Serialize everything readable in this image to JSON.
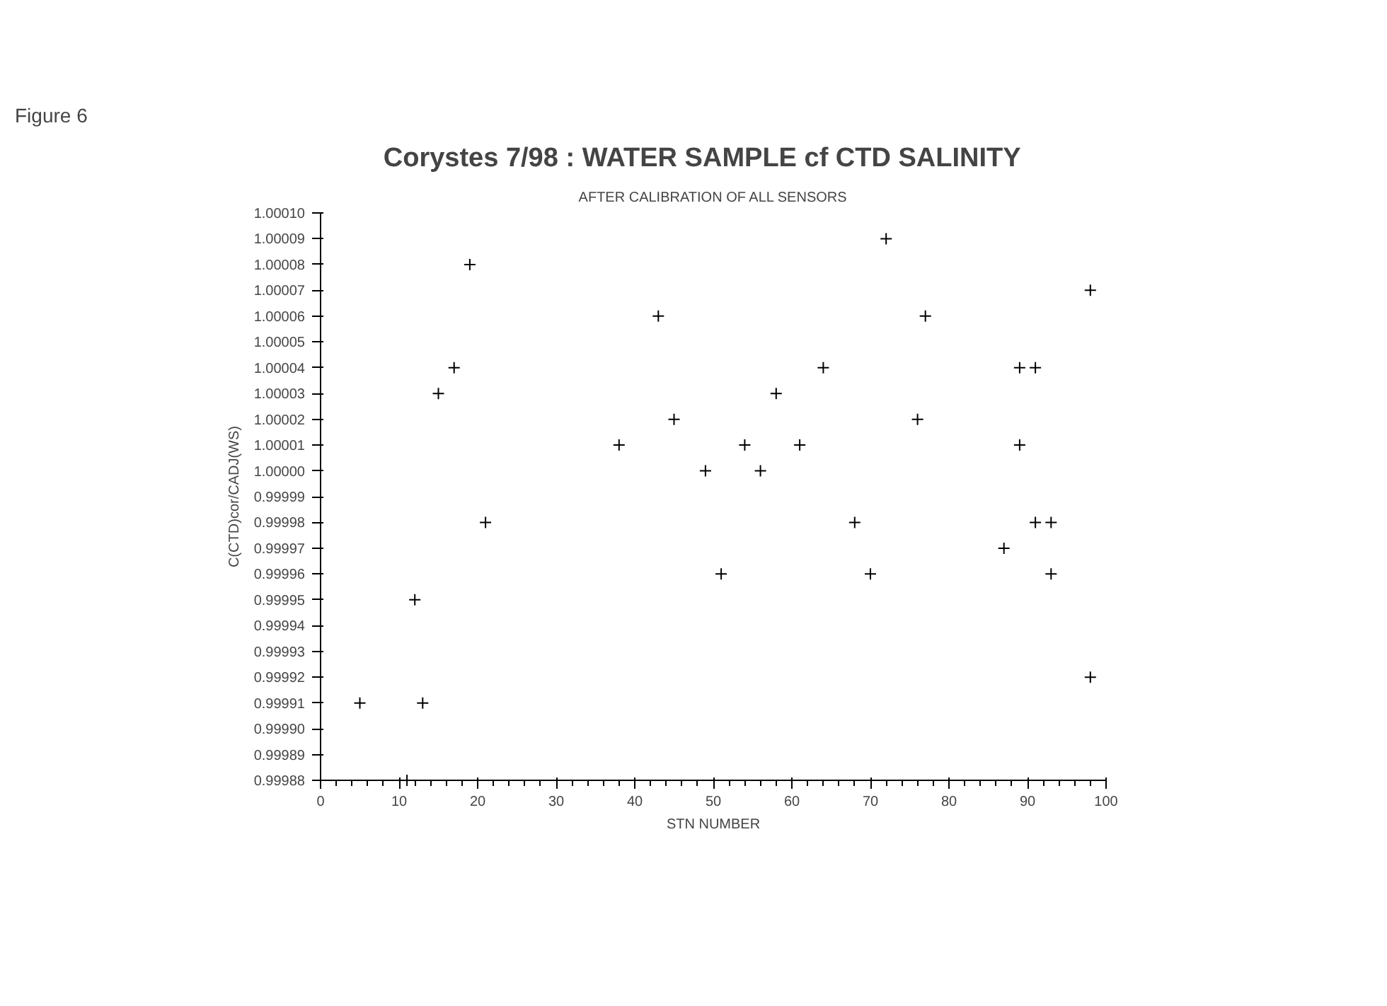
{
  "chart_data": {
    "type": "scatter",
    "title": "Corystes 7/98 :    WATER SAMPLE cf CTD SALINITY",
    "subtitle": "AFTER CALIBRATION OF ALL SENSORS",
    "xlabel": "STN NUMBER",
    "ylabel": "C(CTD)cor/CADJ(WS)",
    "annotations": [
      "Figure 6"
    ],
    "x": [
      5,
      11,
      12,
      13,
      15,
      17,
      19,
      21,
      38,
      43,
      45,
      49,
      51,
      54,
      56,
      58,
      61,
      64,
      68,
      70,
      72,
      76,
      77,
      87,
      89,
      89,
      91,
      91,
      93,
      93,
      98,
      98
    ],
    "values": [
      0.99991,
      0.99988,
      0.99995,
      0.99991,
      1.00003,
      1.00004,
      1.00008,
      0.99998,
      1.00001,
      1.00006,
      1.00002,
      1.0,
      0.99996,
      1.00001,
      1.0,
      1.00003,
      1.00001,
      1.00004,
      0.99998,
      0.99996,
      1.00009,
      1.00002,
      1.00006,
      0.99997,
      1.00004,
      1.00001,
      1.00004,
      0.99998,
      0.99998,
      0.99996,
      1.00007,
      0.99992
    ],
    "color": "#000000",
    "marker": "cross",
    "grid": false,
    "xlim": [
      0,
      100
    ],
    "xticks": [
      0,
      10,
      20,
      30,
      40,
      50,
      60,
      70,
      80,
      90,
      100
    ],
    "ylim": [
      0.99988,
      1.0001
    ],
    "yticks": [
      {
        "value": 0.99988,
        "label": "0.99988"
      },
      {
        "value": 0.99989,
        "label": "0.99989"
      },
      {
        "value": 0.9999,
        "label": "0.99990"
      },
      {
        "value": 0.99991,
        "label": "0.99991"
      },
      {
        "value": 0.99992,
        "label": "0.99992"
      },
      {
        "value": 0.99993,
        "label": "0.99993"
      },
      {
        "value": 0.99994,
        "label": "0.99994"
      },
      {
        "value": 0.99995,
        "label": "0.99995"
      },
      {
        "value": 0.99996,
        "label": "0.99996"
      },
      {
        "value": 0.99997,
        "label": "0.99997"
      },
      {
        "value": 0.99998,
        "label": "0.99998"
      },
      {
        "value": 0.99999,
        "label": "0.99999"
      },
      {
        "value": 1.0,
        "label": "1.00000"
      },
      {
        "value": 1.00001,
        "label": "1.00001"
      },
      {
        "value": 1.00002,
        "label": "1.00002"
      },
      {
        "value": 1.00003,
        "label": "1.00003"
      },
      {
        "value": 1.00004,
        "label": "1.00004"
      },
      {
        "value": 1.00005,
        "label": "1.00005"
      },
      {
        "value": 1.00006,
        "label": "1.00006"
      },
      {
        "value": 1.00007,
        "label": "1.00007"
      },
      {
        "value": 1.00008,
        "label": "1.00008"
      },
      {
        "value": 1.00009,
        "label": "1.00009"
      },
      {
        "value": 1.0001,
        "label": "1.00010"
      }
    ]
  }
}
